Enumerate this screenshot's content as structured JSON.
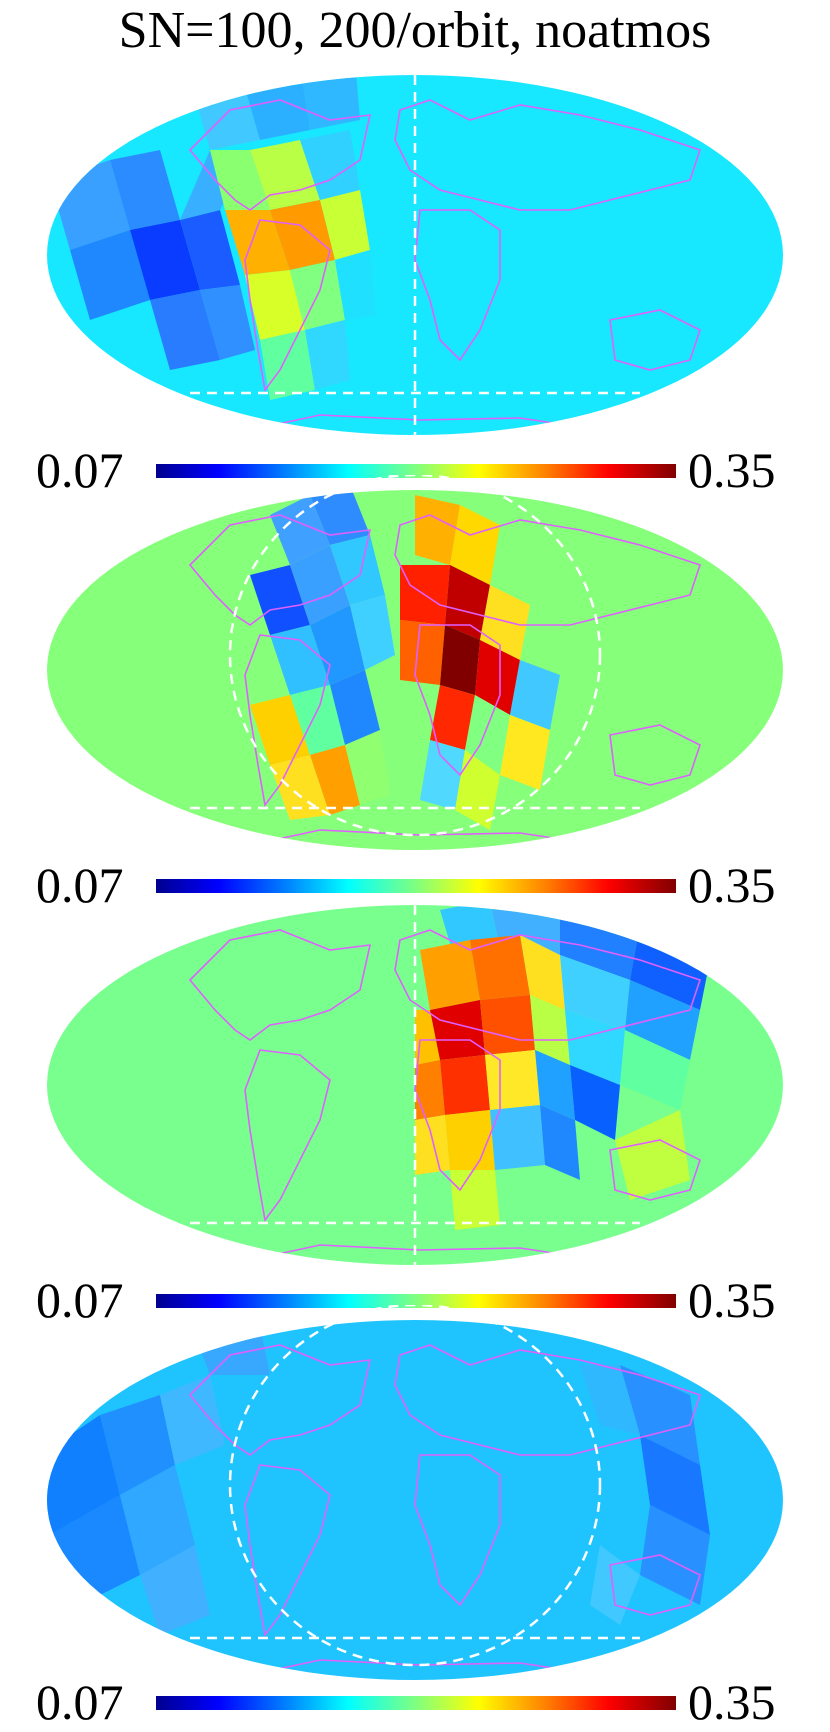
{
  "title": "SN=100, 200/orbit, noatmos",
  "colors": {
    "outline": "#e060ff",
    "graticule": "#ffffff",
    "panel_backgrounds": [
      "#17e8ff",
      "#86ff7a",
      "#78ff8e",
      "#1fc4ff"
    ]
  },
  "colorbar": {
    "colormap": "jet",
    "min_label": "0.07",
    "max_label": "0.35"
  },
  "panels": [
    {
      "name": "panel-1",
      "min_label": "0.07",
      "max_label": "0.35"
    },
    {
      "name": "panel-2",
      "min_label": "0.07",
      "max_label": "0.35"
    },
    {
      "name": "panel-3",
      "min_label": "0.07",
      "max_label": "0.35"
    },
    {
      "name": "panel-4",
      "min_label": "0.07",
      "max_label": "0.35"
    }
  ]
}
